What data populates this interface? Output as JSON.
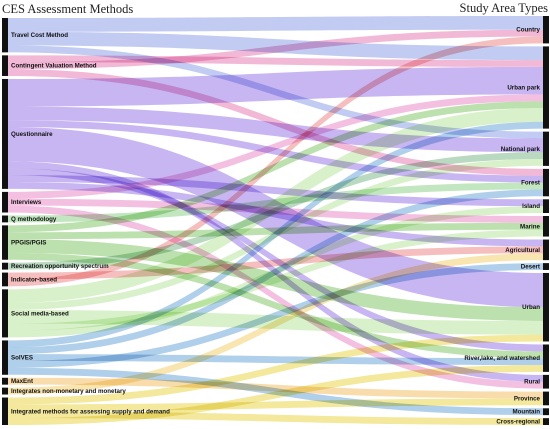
{
  "titles": {
    "left": "CES Assessment Methods",
    "right": "Study Area Types"
  },
  "left_nodes": [
    {
      "id": "travel_cost",
      "label": "Travel Cost Method",
      "color": "#8fa0e8"
    },
    {
      "id": "contingent",
      "label": "Contingent Valuation Method",
      "color": "#e87fb6"
    },
    {
      "id": "questionnaire",
      "label": "Questionnaire",
      "color": "#9a7ae8"
    },
    {
      "id": "interviews",
      "label": "Interviews",
      "color": "#e98cc9"
    },
    {
      "id": "q_method",
      "label": "Q methodology",
      "color": "#8fd18a"
    },
    {
      "id": "ppgis",
      "label": "PPGIS/PGIS",
      "color": "#85c96b"
    },
    {
      "id": "ros",
      "label": "Recreation opportunity spectrum",
      "color": "#7fb98c"
    },
    {
      "id": "indicator",
      "label": "Indicator-based",
      "color": "#ef8a8a"
    },
    {
      "id": "social_media",
      "label": "Social media-based",
      "color": "#b9e59e"
    },
    {
      "id": "solves",
      "label": "SolVES",
      "color": "#6fa8d8"
    },
    {
      "id": "maxent",
      "label": "MaxEnt",
      "color": "#f2c067"
    },
    {
      "id": "integrates_nm",
      "label": "Integrates non-monetary and monetary",
      "color": "#f4d06f"
    },
    {
      "id": "integrated_sd",
      "label": "Integrated methods for assessing supply and demand",
      "color": "#e9d64a"
    }
  ],
  "right_nodes": [
    {
      "id": "country",
      "label": "Country"
    },
    {
      "id": "urban_park",
      "label": "Urban park"
    },
    {
      "id": "national_park",
      "label": "National park"
    },
    {
      "id": "forest",
      "label": "Forest"
    },
    {
      "id": "island",
      "label": "Island"
    },
    {
      "id": "marine",
      "label": "Marine"
    },
    {
      "id": "agricultural",
      "label": "Agricultural"
    },
    {
      "id": "desert",
      "label": "Desert"
    },
    {
      "id": "urban",
      "label": "Urban"
    },
    {
      "id": "river",
      "label": "River,lake, and watershed"
    },
    {
      "id": "rural",
      "label": "Rural"
    },
    {
      "id": "province",
      "label": "Province"
    },
    {
      "id": "mountain",
      "label": "Mountain"
    },
    {
      "id": "cross_regional",
      "label": "Cross-regional"
    }
  ],
  "links": [
    {
      "source": "travel_cost",
      "target": "country",
      "value": 2
    },
    {
      "source": "travel_cost",
      "target": "urban_park",
      "value": 2
    },
    {
      "source": "travel_cost",
      "target": "national_park",
      "value": 1
    },
    {
      "source": "contingent",
      "target": "urban_park",
      "value": 1
    },
    {
      "source": "contingent",
      "target": "country",
      "value": 1
    },
    {
      "source": "contingent",
      "target": "forest",
      "value": 1
    },
    {
      "source": "questionnaire",
      "target": "urban_park",
      "value": 4
    },
    {
      "source": "questionnaire",
      "target": "national_park",
      "value": 2
    },
    {
      "source": "questionnaire",
      "target": "forest",
      "value": 1
    },
    {
      "source": "questionnaire",
      "target": "urban",
      "value": 5
    },
    {
      "source": "questionnaire",
      "target": "rural",
      "value": 1
    },
    {
      "source": "questionnaire",
      "target": "river",
      "value": 1
    },
    {
      "source": "questionnaire",
      "target": "island",
      "value": 1
    },
    {
      "source": "questionnaire",
      "target": "agricultural",
      "value": 1
    },
    {
      "source": "interviews",
      "target": "urban_park",
      "value": 1
    },
    {
      "source": "interviews",
      "target": "marine",
      "value": 1
    },
    {
      "source": "interviews",
      "target": "rural",
      "value": 1
    },
    {
      "source": "q_method",
      "target": "forest",
      "value": 1
    },
    {
      "source": "ppgis",
      "target": "urban_park",
      "value": 1
    },
    {
      "source": "ppgis",
      "target": "marine",
      "value": 1
    },
    {
      "source": "ppgis",
      "target": "urban",
      "value": 2
    },
    {
      "source": "ppgis",
      "target": "river",
      "value": 1
    },
    {
      "source": "ros",
      "target": "national_park",
      "value": 1
    },
    {
      "source": "indicator",
      "target": "agricultural",
      "value": 1
    },
    {
      "source": "indicator",
      "target": "country",
      "value": 1
    },
    {
      "source": "social_media",
      "target": "urban_park",
      "value": 2
    },
    {
      "source": "social_media",
      "target": "national_park",
      "value": 1
    },
    {
      "source": "social_media",
      "target": "urban",
      "value": 2
    },
    {
      "source": "social_media",
      "target": "marine",
      "value": 1
    },
    {
      "source": "social_media",
      "target": "island",
      "value": 1
    },
    {
      "source": "solves",
      "target": "urban_park",
      "value": 1
    },
    {
      "source": "solves",
      "target": "forest",
      "value": 1
    },
    {
      "source": "solves",
      "target": "river",
      "value": 1
    },
    {
      "source": "solves",
      "target": "desert",
      "value": 1
    },
    {
      "source": "solves",
      "target": "mountain",
      "value": 1
    },
    {
      "source": "maxent",
      "target": "province",
      "value": 1
    },
    {
      "source": "integrates_nm",
      "target": "agricultural",
      "value": 1
    },
    {
      "source": "integrated_sd",
      "target": "urban",
      "value": 1
    },
    {
      "source": "integrated_sd",
      "target": "province",
      "value": 1
    },
    {
      "source": "integrated_sd",
      "target": "cross_regional",
      "value": 1
    },
    {
      "source": "integrated_sd",
      "target": "river",
      "value": 1
    }
  ]
}
